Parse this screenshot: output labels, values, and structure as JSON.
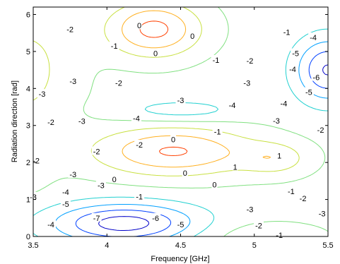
{
  "chart_data": {
    "type": "contour",
    "title": "",
    "xlabel": "Frequency [GHz]",
    "ylabel": "Radiation direction [rad]",
    "xlim": [
      3.5,
      5.5
    ],
    "ylim": [
      0,
      6.2
    ],
    "x_ticks": [
      "3.5",
      "4",
      "4.5",
      "5",
      "5.5"
    ],
    "x_tick_values": [
      3.5,
      4.0,
      4.5,
      5.0,
      5.5
    ],
    "y_ticks": [
      "0",
      "1",
      "2",
      "3",
      "4",
      "5",
      "6"
    ],
    "y_tick_values": [
      0,
      1,
      2,
      3,
      4,
      5,
      6
    ],
    "grid": false,
    "legend": "none",
    "colormap": "jet",
    "levels": [
      -7,
      -6,
      -5,
      -4,
      -3,
      -2,
      -1,
      0,
      1
    ],
    "level_colors": {
      "-7": "#0000c8",
      "-6": "#0040ff",
      "-5": "#00a0ff",
      "-4": "#20d0d0",
      "-3": "#80e080",
      "-2": "#c8e040",
      "-1": "#ffb020",
      "0": "#ff4000",
      "1": "#a00000"
    },
    "contour_labels": [
      {
        "text": "0",
        "x": 4.22,
        "y": 5.7,
        "level": 0
      },
      {
        "text": "0",
        "x": 4.58,
        "y": 5.42,
        "level": 0
      },
      {
        "text": "0",
        "x": 4.33,
        "y": 4.95,
        "level": 0
      },
      {
        "text": "-1",
        "x": 4.05,
        "y": 5.15,
        "level": -1
      },
      {
        "text": "-1",
        "x": 4.74,
        "y": 4.77,
        "level": -1
      },
      {
        "text": "-1",
        "x": 5.22,
        "y": 5.52,
        "level": -1
      },
      {
        "text": "-2",
        "x": 3.75,
        "y": 5.6,
        "level": -2
      },
      {
        "text": "-2",
        "x": 4.08,
        "y": 4.15,
        "level": -2
      },
      {
        "text": "-2",
        "x": 4.97,
        "y": 4.75,
        "level": -2
      },
      {
        "text": "-2",
        "x": 3.62,
        "y": 3.09,
        "level": -2
      },
      {
        "text": "-2",
        "x": 3.52,
        "y": 2.05,
        "level": -2
      },
      {
        "text": "-2",
        "x": 3.93,
        "y": 2.3,
        "level": -2
      },
      {
        "text": "-2",
        "x": 4.22,
        "y": 2.48,
        "level": -2
      },
      {
        "text": "-2",
        "x": 5.33,
        "y": 1.03,
        "level": -2
      },
      {
        "text": "-2",
        "x": 5.45,
        "y": 2.88,
        "level": -2
      },
      {
        "text": "-2",
        "x": 5.03,
        "y": 0.3,
        "level": -2
      },
      {
        "text": "-3",
        "x": 3.77,
        "y": 4.2,
        "level": -3
      },
      {
        "text": "-3",
        "x": 3.56,
        "y": 3.85,
        "level": -3
      },
      {
        "text": "-3",
        "x": 4.95,
        "y": 4.15,
        "level": -3
      },
      {
        "text": "-3",
        "x": 3.83,
        "y": 3.12,
        "level": -3
      },
      {
        "text": "-3",
        "x": 3.77,
        "y": 1.68,
        "level": -3
      },
      {
        "text": "-3",
        "x": 3.96,
        "y": 1.38,
        "level": -3
      },
      {
        "text": "-3",
        "x": 5.15,
        "y": 3.13,
        "level": -3
      },
      {
        "text": "-3",
        "x": 4.97,
        "y": 0.73,
        "level": -3
      },
      {
        "text": "-3",
        "x": 5.46,
        "y": 0.62,
        "level": -3
      },
      {
        "text": "-3",
        "x": 3.5,
        "y": 1.07,
        "level": -3
      },
      {
        "text": "-3",
        "x": 4.5,
        "y": 3.68,
        "level": -3
      },
      {
        "text": "-4",
        "x": 4.2,
        "y": 3.2,
        "level": -4
      },
      {
        "text": "-4",
        "x": 4.85,
        "y": 3.55,
        "level": -4
      },
      {
        "text": "-4",
        "x": 5.2,
        "y": 3.6,
        "level": -4
      },
      {
        "text": "-4",
        "x": 5.26,
        "y": 4.52,
        "level": -4
      },
      {
        "text": "-4",
        "x": 5.4,
        "y": 5.38,
        "level": -4
      },
      {
        "text": "-4",
        "x": 3.72,
        "y": 1.2,
        "level": -4
      },
      {
        "text": "-4",
        "x": 3.62,
        "y": 0.32,
        "level": -4
      },
      {
        "text": "-5",
        "x": 3.72,
        "y": 0.88,
        "level": -5
      },
      {
        "text": "-5",
        "x": 4.5,
        "y": 0.32,
        "level": -5
      },
      {
        "text": "-5",
        "x": 5.28,
        "y": 4.95,
        "level": -5
      },
      {
        "text": "-5",
        "x": 5.37,
        "y": 3.9,
        "level": -5
      },
      {
        "text": "-6",
        "x": 4.33,
        "y": 0.5,
        "level": -6
      },
      {
        "text": "-6",
        "x": 5.42,
        "y": 4.3,
        "level": -6
      },
      {
        "text": "-7",
        "x": 3.93,
        "y": 0.5,
        "level": -7
      },
      {
        "text": "0",
        "x": 4.45,
        "y": 2.62,
        "level": 0
      },
      {
        "text": "0",
        "x": 4.05,
        "y": 1.55,
        "level": 0
      },
      {
        "text": "0",
        "x": 4.73,
        "y": 1.4,
        "level": 0
      },
      {
        "text": "0",
        "x": 4.53,
        "y": 1.72,
        "level": 0
      },
      {
        "text": "1",
        "x": 5.17,
        "y": 2.18,
        "level": 1
      },
      {
        "text": "1",
        "x": 4.87,
        "y": 1.88,
        "level": 1
      },
      {
        "text": "-1",
        "x": 4.75,
        "y": 2.83,
        "level": -1
      },
      {
        "text": "-1",
        "x": 4.22,
        "y": 1.08,
        "level": -1
      },
      {
        "text": "-1",
        "x": 5.25,
        "y": 1.22,
        "level": -1
      },
      {
        "text": "-1",
        "x": 5.17,
        "y": 0.04,
        "level": -1
      }
    ]
  }
}
